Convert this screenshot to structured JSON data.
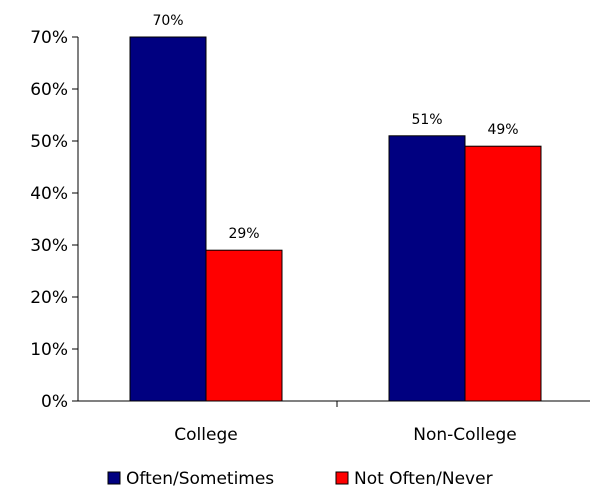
{
  "chart_data": {
    "type": "bar",
    "categories": [
      "College",
      "Non-College"
    ],
    "series": [
      {
        "name": "Often/Sometimes",
        "color": "#000080",
        "values": [
          70,
          51
        ],
        "labels": [
          "70%",
          "51%"
        ]
      },
      {
        "name": "Not Often/Never",
        "color": "#ff0000",
        "values": [
          29,
          49
        ],
        "labels": [
          "29%",
          "49%"
        ]
      }
    ],
    "ylim": [
      0,
      70
    ],
    "yticks": [
      0,
      10,
      20,
      30,
      40,
      50,
      60,
      70
    ],
    "ytick_labels": [
      "0%",
      "10%",
      "20%",
      "30%",
      "40%",
      "50%",
      "60%",
      "70%"
    ],
    "title": "",
    "xlabel": "",
    "ylabel": "",
    "legend_position": "bottom",
    "grid": false
  }
}
